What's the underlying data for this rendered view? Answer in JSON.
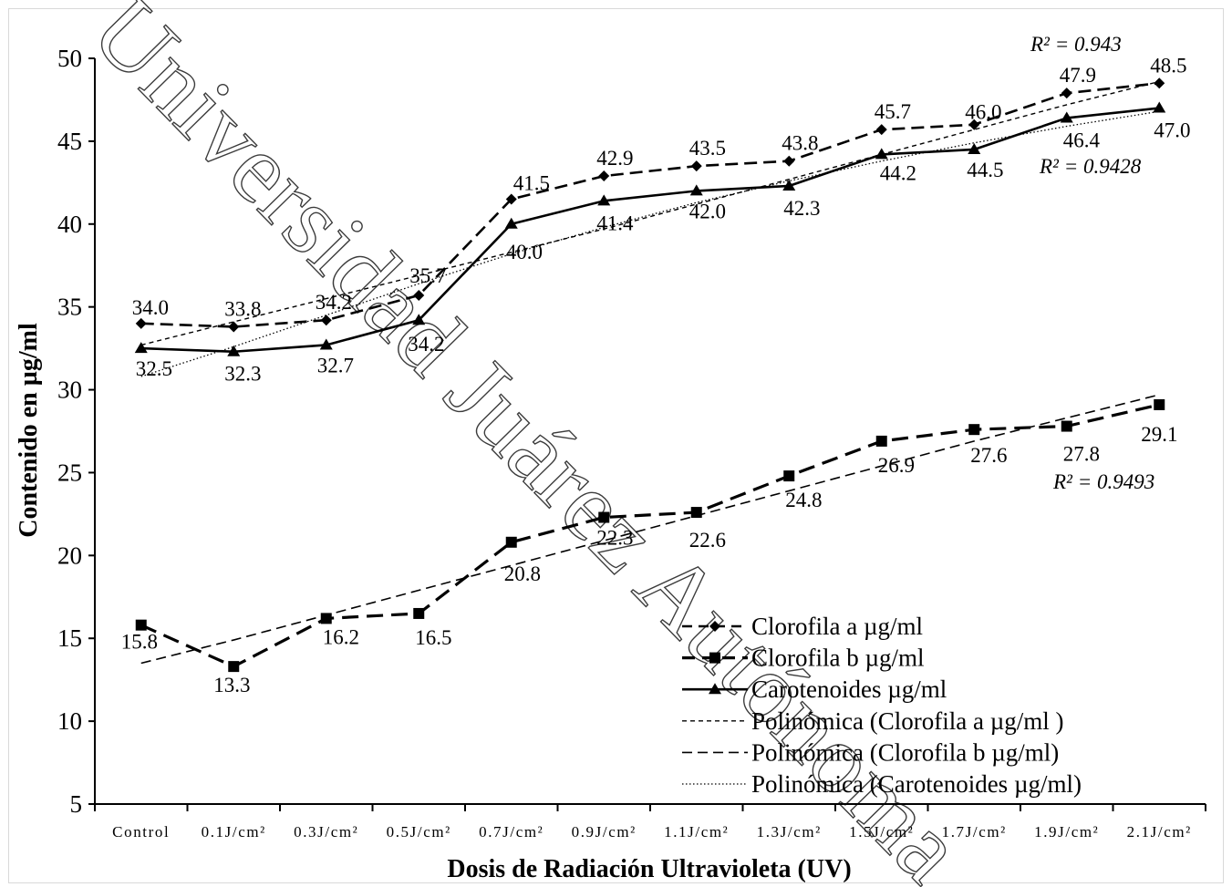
{
  "watermark": "Universidad Juárez Autónoma de Tabasco México",
  "chart_data": {
    "type": "line",
    "title": "",
    "xlabel": "Dosis de Radiación Ultravioleta (UV)",
    "ylabel": "Contenido en  µg/ml",
    "ylim": [
      5,
      50
    ],
    "yticks": [
      "5",
      "10",
      "15",
      "20",
      "25",
      "30",
      "35",
      "40",
      "45",
      "50"
    ],
    "grid": false,
    "legend_position": "bottom-right",
    "categories": [
      "Control",
      "0.1J/cm²",
      "0.3J/cm²",
      "0.5J/cm²",
      "0.7J/cm²",
      "0.9J/cm²",
      "1.1J/cm²",
      "1.3J/cm²",
      "1.5J/cm²",
      "1.7J/cm²",
      "1.9J/cm²",
      "2.1J/cm²"
    ],
    "series": [
      {
        "name": "Clorofila a µg/ml",
        "color": "#000000",
        "marker": "diamond",
        "values": [
          34.0,
          33.8,
          34.2,
          35.7,
          41.5,
          42.9,
          43.5,
          43.8,
          45.7,
          46.0,
          47.9,
          48.5
        ],
        "labels": [
          "34.0",
          "33.8",
          "34.2",
          "35.7",
          "41.5",
          "42.9",
          "43.5",
          "43.8",
          "45.7",
          "46.0",
          "47.9",
          "48.5"
        ]
      },
      {
        "name": "Clorofila b µg/ml",
        "color": "#000000",
        "marker": "square",
        "values": [
          15.8,
          13.3,
          16.2,
          16.5,
          20.8,
          22.3,
          22.6,
          24.8,
          26.9,
          27.6,
          27.8,
          29.1
        ],
        "labels": [
          "15.8",
          "13.3",
          "16.2",
          "16.5",
          "20.8",
          "22.3",
          "22.6",
          "24.8",
          "26.9",
          "27.6",
          "27.8",
          "29.1"
        ]
      },
      {
        "name": "Carotenoides µg/ml",
        "color": "#000000",
        "marker": "triangle",
        "values": [
          32.5,
          32.3,
          32.7,
          34.2,
          40.0,
          41.4,
          42.0,
          42.3,
          44.2,
          44.5,
          46.4,
          47.0
        ],
        "labels": [
          "32.5",
          "32.3",
          "32.7",
          "34.2",
          "40.0",
          "41.4",
          "42.0",
          "42.3",
          "44.2",
          "44.5",
          "46.4",
          "47.0"
        ]
      }
    ],
    "trendlines": [
      {
        "name": "Polinómica (Clorofila a µg/ml )",
        "type": "polynomial",
        "r2": "R² = 0.943",
        "values": [
          32.7,
          34.1,
          35.5,
          36.9,
          38.3,
          39.7,
          41.2,
          42.7,
          44.2,
          45.7,
          47.2,
          48.6
        ]
      },
      {
        "name": "Polinómica (Clorofila b µg/ml)",
        "type": "polynomial",
        "r2": "R² = 0.9493",
        "values": [
          13.5,
          14.9,
          16.4,
          17.9,
          19.4,
          20.9,
          22.4,
          23.9,
          25.4,
          26.9,
          28.3,
          29.7
        ]
      },
      {
        "name": "Polinómica (Carotenoides µg/ml)",
        "type": "polynomial",
        "r2": "R² = 0.9428",
        "values": [
          30.8,
          32.6,
          34.5,
          36.4,
          38.2,
          39.8,
          41.3,
          42.6,
          43.8,
          44.9,
          45.9,
          46.8
        ]
      }
    ]
  }
}
